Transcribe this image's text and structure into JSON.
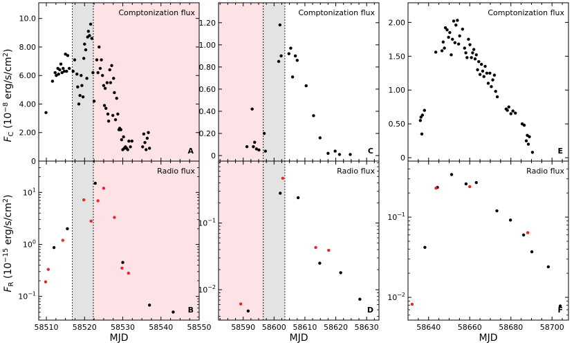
{
  "figure": {
    "ylabel_top": "F_C (10^-8 erg/s/cm^2)",
    "ylabel_bottom": "F_R (10^-15 erg/s/cm^2)",
    "xlabel": "MJD",
    "top_title": "Comptonization flux",
    "bottom_title": "Radio flux",
    "colors": {
      "marker": "#000000",
      "marker_red": "#e8262b",
      "shade_pink": "#fde2e6",
      "shade_gray": "#e3e3e3"
    }
  },
  "chart_data": [
    {
      "id": "A",
      "type": "scatter",
      "title": "Comptonization flux",
      "panel_label": "A",
      "xlim": [
        58508,
        58550
      ],
      "ylim": [
        0,
        11.1
      ],
      "log": false,
      "yticks": [
        0,
        2,
        4,
        6,
        8,
        10
      ],
      "ytick_labels": [
        "0",
        "2.00",
        "4.00",
        "6.00",
        "8.00",
        "10.0"
      ],
      "shading": [
        {
          "from": 58516.8,
          "to": 58522.3,
          "color": "gray"
        },
        {
          "from": 58522.3,
          "to": 58550,
          "color": "pink"
        }
      ],
      "series": [
        {
          "color": "black",
          "points": [
            [
              58509.9,
              3.4
            ],
            [
              58511.6,
              5.6
            ],
            [
              58512.3,
              6.2
            ],
            [
              58512.6,
              6.0
            ],
            [
              58513.0,
              6.5
            ],
            [
              58513.2,
              6.1
            ],
            [
              58513.5,
              6.4
            ],
            [
              58513.8,
              6.8
            ],
            [
              58514.1,
              6.2
            ],
            [
              58514.4,
              6.5
            ],
            [
              58514.7,
              6.3
            ],
            [
              58515.0,
              7.5
            ],
            [
              58515.3,
              6.3
            ],
            [
              58515.6,
              7.4
            ],
            [
              58516.0,
              6.5
            ],
            [
              58517.0,
              6.3
            ],
            [
              58517.4,
              7.1
            ],
            [
              58518.0,
              6.1
            ],
            [
              58518.2,
              5.2
            ],
            [
              58518.5,
              4.0
            ],
            [
              58518.8,
              4.6
            ],
            [
              58519.1,
              6.0
            ],
            [
              58519.3,
              5.3
            ],
            [
              58519.6,
              4.5
            ],
            [
              58519.8,
              7.2
            ],
            [
              58520.0,
              8.2
            ],
            [
              58520.3,
              7.8
            ],
            [
              58520.6,
              5.8
            ],
            [
              58520.8,
              8.7
            ],
            [
              58521.0,
              9.1
            ],
            [
              58521.3,
              8.8
            ],
            [
              58521.6,
              9.6
            ],
            [
              58521.9,
              8.6
            ],
            [
              58522.2,
              6.2
            ],
            [
              58522.5,
              4.2
            ],
            [
              58523.2,
              7.1
            ],
            [
              58523.5,
              6.2
            ],
            [
              58523.8,
              8.0
            ],
            [
              58524.1,
              6.5
            ],
            [
              58524.4,
              7.1
            ],
            [
              58524.7,
              6.0
            ],
            [
              58525.0,
              5.3
            ],
            [
              58525.2,
              3.9
            ],
            [
              58525.4,
              5.1
            ],
            [
              58525.6,
              3.7
            ],
            [
              58525.9,
              5.5
            ],
            [
              58526.1,
              3.3
            ],
            [
              58526.3,
              2.8
            ],
            [
              58526.6,
              6.4
            ],
            [
              58526.8,
              5.5
            ],
            [
              58527.1,
              6.7
            ],
            [
              58527.4,
              3.2
            ],
            [
              58527.6,
              5.8
            ],
            [
              58527.8,
              4.8
            ],
            [
              58528.1,
              2.9
            ],
            [
              58528.4,
              4.4
            ],
            [
              58528.7,
              3.3
            ],
            [
              58529.0,
              2.2
            ],
            [
              58529.2,
              2.3
            ],
            [
              58529.5,
              2.2
            ],
            [
              58529.7,
              1.5
            ],
            [
              58530.0,
              0.8
            ],
            [
              58530.2,
              1.7
            ],
            [
              58530.4,
              0.9
            ],
            [
              58530.7,
              1.0
            ],
            [
              58531.0,
              0.9
            ],
            [
              58531.3,
              0.8
            ],
            [
              58531.6,
              1.4
            ],
            [
              58532.0,
              1.0
            ],
            [
              58532.4,
              1.4
            ],
            [
              58535.2,
              1.0
            ],
            [
              58535.5,
              1.9
            ],
            [
              58535.8,
              1.3
            ],
            [
              58536.1,
              0.8
            ],
            [
              58536.4,
              1.6
            ],
            [
              58536.7,
              2.0
            ],
            [
              58537.0,
              0.9
            ]
          ]
        }
      ]
    },
    {
      "id": "B",
      "type": "scatter",
      "title": "Radio flux",
      "panel_label": "B",
      "xlim": [
        58508,
        58550
      ],
      "ylim": [
        0.035,
        40
      ],
      "log": true,
      "yticks": [
        0.1,
        1,
        10
      ],
      "ytick_labels": [
        "10^-1",
        "10^0",
        "10^1"
      ],
      "xticks": [
        58510,
        58520,
        58530,
        58540,
        58550
      ],
      "xtick_labels": [
        "58510",
        "58520",
        "58530",
        "58540",
        "58550"
      ],
      "shading": [
        {
          "from": 58516.8,
          "to": 58522.3,
          "color": "gray"
        },
        {
          "from": 58522.3,
          "to": 58550,
          "color": "pink"
        }
      ],
      "series": [
        {
          "color": "black",
          "points": [
            [
              58512.0,
              0.87
            ],
            [
              58515.5,
              2.0
            ],
            [
              58522.8,
              15.0
            ],
            [
              58530.0,
              0.45
            ],
            [
              58537.0,
              0.068
            ],
            [
              58543.2,
              0.05
            ]
          ]
        },
        {
          "color": "red",
          "points": [
            [
              58509.8,
              0.19
            ],
            [
              58510.5,
              0.33
            ],
            [
              58514.3,
              1.2
            ],
            [
              58519.8,
              7.2
            ],
            [
              58521.7,
              2.8
            ],
            [
              58523.5,
              6.9
            ],
            [
              58525.0,
              12.0
            ],
            [
              58527.8,
              3.3
            ],
            [
              58529.8,
              0.35
            ],
            [
              58531.5,
              0.28
            ]
          ]
        }
      ]
    },
    {
      "id": "C",
      "type": "scatter",
      "title": "Comptonization flux",
      "panel_label": "C",
      "xlim": [
        58582,
        58634
      ],
      "ylim": [
        -0.05,
        1.38
      ],
      "log": false,
      "yticks": [
        0,
        0.2,
        0.4,
        0.6,
        0.8,
        1.0,
        1.2
      ],
      "ytick_labels": [
        "0",
        "0.20",
        "0.40",
        "0.60",
        "0.80",
        "1.00",
        "1.20"
      ],
      "shading": [
        {
          "from": 58582,
          "to": 58596.5,
          "color": "pink"
        },
        {
          "from": 58596.5,
          "to": 58603.5,
          "color": "gray"
        }
      ],
      "series": [
        {
          "color": "black",
          "points": [
            [
              58591.2,
              0.08
            ],
            [
              58592.9,
              0.42
            ],
            [
              58593.3,
              0.08
            ],
            [
              58593.7,
              0.12
            ],
            [
              58594.3,
              0.06
            ],
            [
              58595.1,
              0.05
            ],
            [
              58596.8,
              0.2
            ],
            [
              58597.2,
              0.04
            ],
            [
              58601.5,
              0.85
            ],
            [
              58601.9,
              1.18
            ],
            [
              58602.3,
              0.9
            ],
            [
              58604.8,
              0.92
            ],
            [
              58605.4,
              0.97
            ],
            [
              58606.0,
              0.71
            ],
            [
              58606.9,
              0.9
            ],
            [
              58607.5,
              0.86
            ],
            [
              58610.4,
              0.63
            ],
            [
              58612.8,
              0.36
            ],
            [
              58614.9,
              0.16
            ],
            [
              58617.5,
              0.02
            ],
            [
              58619.8,
              0.04
            ],
            [
              58621.2,
              0.01
            ],
            [
              58624.7,
              0.01
            ]
          ]
        }
      ]
    },
    {
      "id": "D",
      "type": "scatter",
      "title": "Radio flux",
      "panel_label": "D",
      "xlim": [
        58582,
        58634
      ],
      "ylim": [
        0.0035,
        0.85
      ],
      "log": true,
      "yticks": [
        0.01,
        0.1
      ],
      "ytick_labels": [
        "10^-2",
        "10^-1"
      ],
      "xticks": [
        58590,
        58600,
        58610,
        58620,
        58630
      ],
      "xtick_labels": [
        "58590",
        "58600",
        "58610",
        "58620",
        "58630"
      ],
      "shading": [
        {
          "from": 58582,
          "to": 58596.5,
          "color": "pink"
        },
        {
          "from": 58596.5,
          "to": 58603.5,
          "color": "gray"
        }
      ],
      "series": [
        {
          "color": "black",
          "points": [
            [
              58591.6,
              0.0048
            ],
            [
              58602.0,
              0.28
            ],
            [
              58607.8,
              0.24
            ],
            [
              58614.8,
              0.025
            ],
            [
              58621.6,
              0.018
            ],
            [
              58627.8,
              0.0072
            ]
          ]
        },
        {
          "color": "red",
          "points": [
            [
              58589.2,
              0.0061
            ],
            [
              58602.8,
              0.47
            ],
            [
              58613.5,
              0.043
            ],
            [
              58617.7,
              0.039
            ]
          ]
        }
      ]
    },
    {
      "id": "E",
      "type": "scatter",
      "title": "Comptonization flux",
      "panel_label": "E",
      "xlim": [
        58630,
        58708
      ],
      "ylim": [
        -0.05,
        2.29
      ],
      "log": false,
      "yticks": [
        0,
        0.5,
        1.0,
        1.5,
        2.0
      ],
      "ytick_labels": [
        "0",
        "0.50",
        "1.00",
        "1.50",
        "2.00"
      ],
      "shading": [],
      "series": [
        {
          "color": "black",
          "points": [
            [
              58636.0,
              0.55
            ],
            [
              58636.3,
              0.6
            ],
            [
              58636.7,
              0.35
            ],
            [
              58637.0,
              0.63
            ],
            [
              58638.0,
              0.7
            ],
            [
              58643.5,
              1.56
            ],
            [
              58646.5,
              1.58
            ],
            [
              58647.1,
              1.71
            ],
            [
              58647.7,
              1.62
            ],
            [
              58648.2,
              1.92
            ],
            [
              58649.0,
              1.89
            ],
            [
              58649.7,
              1.78
            ],
            [
              58650.3,
              1.85
            ],
            [
              58651.0,
              1.52
            ],
            [
              58651.6,
              1.75
            ],
            [
              58652.2,
              2.02
            ],
            [
              58652.8,
              1.7
            ],
            [
              58653.3,
              1.96
            ],
            [
              58654.0,
              2.03
            ],
            [
              58654.6,
              1.68
            ],
            [
              58655.1,
              1.8
            ],
            [
              58656.5,
              1.9
            ],
            [
              58657.5,
              1.62
            ],
            [
              58658.1,
              1.55
            ],
            [
              58658.7,
              1.48
            ],
            [
              58659.4,
              1.75
            ],
            [
              58660.1,
              1.67
            ],
            [
              58660.8,
              1.48
            ],
            [
              58661.4,
              1.55
            ],
            [
              58662.0,
              1.6
            ],
            [
              58662.6,
              1.46
            ],
            [
              58663.2,
              1.52
            ],
            [
              58663.8,
              1.3
            ],
            [
              58664.4,
              1.42
            ],
            [
              58665.0,
              1.23
            ],
            [
              58665.7,
              1.38
            ],
            [
              58666.3,
              1.28
            ],
            [
              58666.9,
              1.2
            ],
            [
              58667.5,
              1.35
            ],
            [
              58668.3,
              1.25
            ],
            [
              58669.0,
              1.1
            ],
            [
              58669.8,
              1.25
            ],
            [
              58670.5,
              1.05
            ],
            [
              58671.2,
              1.15
            ],
            [
              58672.0,
              1.22
            ],
            [
              58672.6,
              0.98
            ],
            [
              58673.4,
              0.9
            ],
            [
              58677.7,
              0.72
            ],
            [
              58678.3,
              0.7
            ],
            [
              58679.0,
              0.75
            ],
            [
              58680.0,
              0.65
            ],
            [
              58681.0,
              0.69
            ],
            [
              58682.2,
              0.66
            ],
            [
              58685.5,
              0.5
            ],
            [
              58686.5,
              0.48
            ],
            [
              58687.5,
              0.25
            ],
            [
              58688.0,
              0.33
            ],
            [
              58688.5,
              0.2
            ],
            [
              58689.0,
              0.31
            ],
            [
              58690.5,
              0.08
            ]
          ]
        }
      ]
    },
    {
      "id": "F",
      "type": "scatter",
      "title": "Radio flux",
      "panel_label": "F",
      "xlim": [
        58630,
        58708
      ],
      "ylim": [
        0.0052,
        0.5
      ],
      "log": true,
      "yticks": [
        0.01,
        0.1
      ],
      "ytick_labels": [
        "10^-2",
        "10^-1"
      ],
      "xticks": [
        58640,
        58660,
        58680,
        58700
      ],
      "xtick_labels": [
        "58640",
        "58660",
        "58680",
        "58700"
      ],
      "shading": [],
      "series": [
        {
          "color": "black",
          "points": [
            [
              58638.2,
              0.042
            ],
            [
              58644.3,
              0.235
            ],
            [
              58651.2,
              0.34
            ],
            [
              58658.2,
              0.26
            ],
            [
              58663.2,
              0.27
            ],
            [
              58673.2,
              0.12
            ],
            [
              58679.8,
              0.092
            ],
            [
              58686.2,
              0.06
            ],
            [
              58690.2,
              0.037
            ],
            [
              58698.2,
              0.024
            ],
            [
              58704.0,
              0.0078
            ]
          ]
        },
        {
          "color": "red",
          "points": [
            [
              58632.0,
              0.0082
            ],
            [
              58643.6,
              0.23
            ],
            [
              58660.0,
              0.24
            ],
            [
              58688.2,
              0.064
            ]
          ]
        }
      ]
    }
  ]
}
